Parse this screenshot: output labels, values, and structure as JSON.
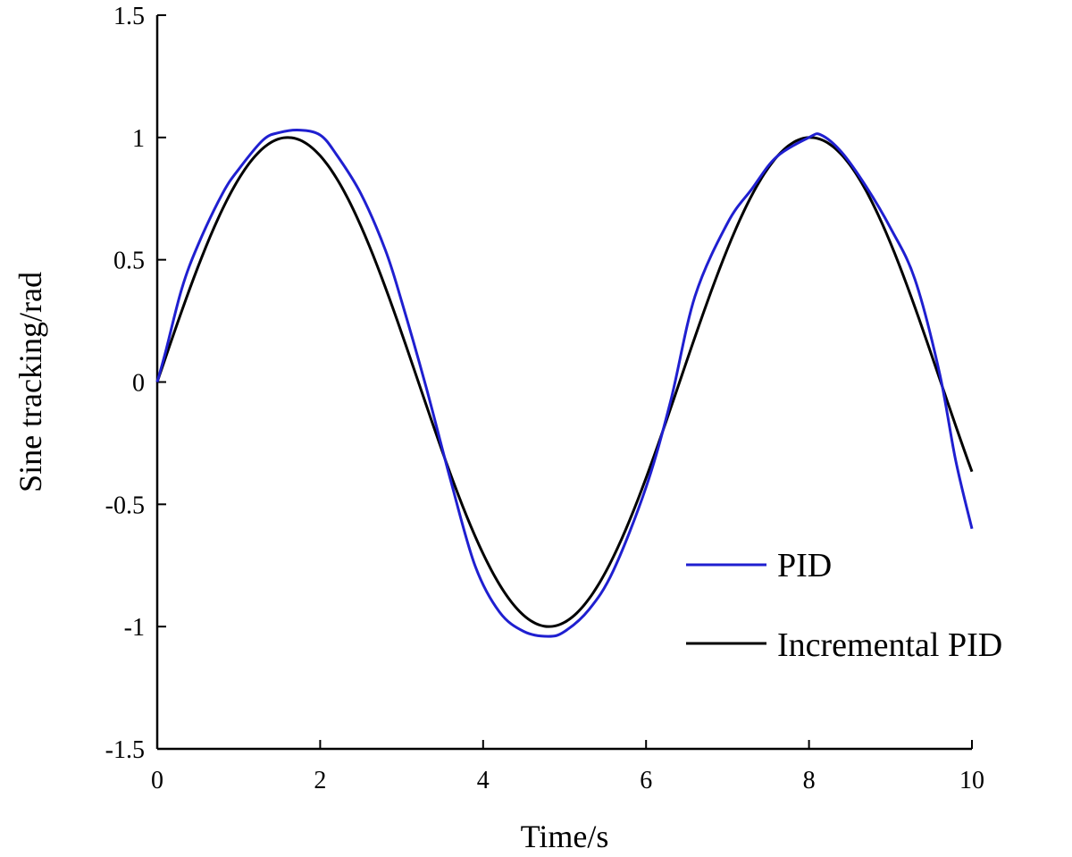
{
  "chart_data": {
    "type": "line",
    "title": "",
    "xlabel": "Time/s",
    "ylabel": "Sine tracking/rad",
    "xlim": [
      0,
      10
    ],
    "ylim": [
      -1.5,
      1.5
    ],
    "xticks": [
      0,
      2,
      4,
      6,
      8,
      10
    ],
    "yticks": [
      -1.5,
      -1,
      -0.5,
      0,
      0.5,
      1,
      1.5
    ],
    "xtick_labels": [
      "0",
      "2",
      "4",
      "6",
      "8",
      "10"
    ],
    "ytick_labels": [
      "-1.5",
      "-1",
      "-0.5",
      "0",
      "0.5",
      "1",
      "1.5"
    ],
    "grid": false,
    "legend_position": "bottom-right",
    "series": [
      {
        "name": "PID",
        "color": "#1f1fd0",
        "x": [
          0,
          0.1,
          0.3,
          0.5,
          0.8,
          1.0,
          1.3,
          1.5,
          1.75,
          2.0,
          2.2,
          2.5,
          2.8,
          3.0,
          3.3,
          3.6,
          3.9,
          4.2,
          4.5,
          4.8,
          5.0,
          5.3,
          5.6,
          6.0,
          6.3,
          6.6,
          7.0,
          7.3,
          7.6,
          8.0,
          8.15,
          8.4,
          8.7,
          9.0,
          9.3,
          9.6,
          9.8,
          10.0
        ],
        "y": [
          0.0,
          0.12,
          0.38,
          0.56,
          0.77,
          0.87,
          0.99,
          1.02,
          1.03,
          1.01,
          0.93,
          0.77,
          0.54,
          0.33,
          -0.02,
          -0.4,
          -0.75,
          -0.94,
          -1.02,
          -1.04,
          -1.02,
          -0.93,
          -0.77,
          -0.43,
          -0.08,
          0.35,
          0.65,
          0.79,
          0.92,
          1.0,
          1.01,
          0.94,
          0.8,
          0.63,
          0.42,
          0.04,
          -0.32,
          -0.6
        ]
      },
      {
        "name": "Incremental PID",
        "color": "#000000",
        "func": "sin",
        "amplitude": 1,
        "omega": 0.98,
        "x_start": 0,
        "x_end": 10,
        "samples": 201
      }
    ]
  }
}
